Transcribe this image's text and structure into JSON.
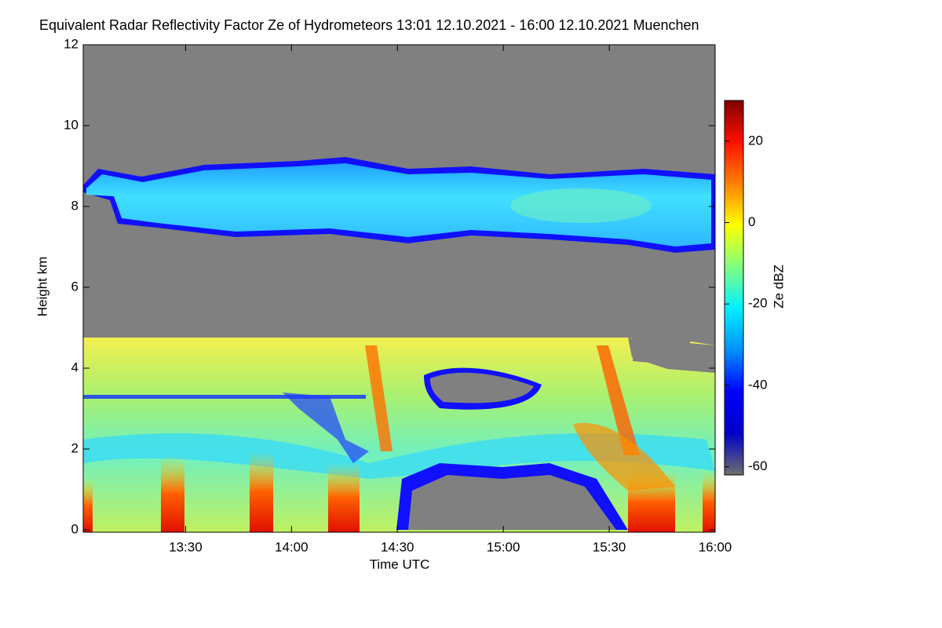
{
  "chart_data": {
    "type": "heatmap",
    "title": "Equivalent Radar Reflectivity Factor Ze of Hydrometeors   13:01 12.10.2021 - 16:00 12.10.2021 Muenchen",
    "x_label": "Time UTC",
    "y_label": "Height km",
    "xlim": [
      "13:01",
      "16:00"
    ],
    "xticks": [
      "13:30",
      "14:00",
      "14:30",
      "15:00",
      "15:30",
      "16:00"
    ],
    "ylim": [
      0,
      12
    ],
    "yticks": [
      0,
      2,
      4,
      6,
      8,
      10,
      12
    ],
    "colorbar": {
      "label": "Ze dBZ",
      "lim": [
        -62,
        30
      ],
      "ticks": [
        -60,
        -40,
        -20,
        0,
        20
      ],
      "colormap": [
        "#6e6e6e",
        "#0000c8",
        "#0000ff",
        "#0090ff",
        "#00f0ff",
        "#80ff80",
        "#ffff00",
        "#ff8000",
        "#ff1000",
        "#800000"
      ]
    },
    "background_color": "#808080"
  }
}
